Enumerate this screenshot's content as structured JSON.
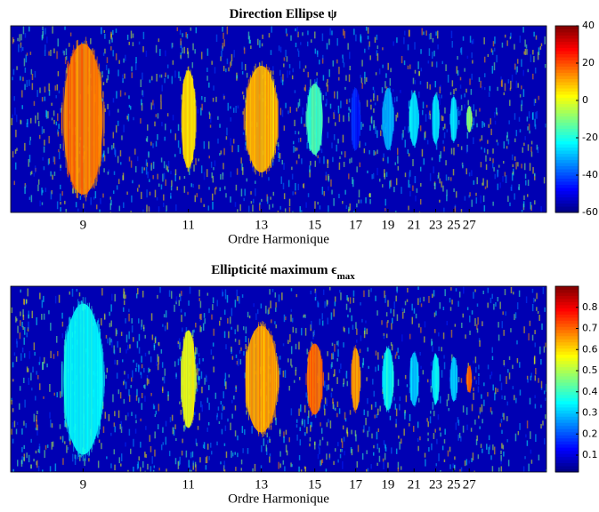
{
  "chart_data": [
    {
      "type": "heatmap",
      "title": "Direction Ellipse ψ",
      "x_label": "Ordre Harmonique",
      "x": [
        9,
        11,
        13,
        15,
        17,
        19,
        21,
        23,
        25,
        27
      ],
      "values": [
        15,
        5,
        10,
        -15,
        -45,
        -30,
        -25,
        -25,
        -25,
        -10
      ],
      "xlim": [
        8,
        45
      ],
      "xscale": "reciprocal",
      "xticks": [
        9,
        11,
        13,
        15,
        17,
        19,
        21,
        23,
        25,
        27
      ],
      "colormap": "jet",
      "clim": [
        -60,
        40
      ],
      "cticks": [
        -60,
        -40,
        -20,
        0,
        20,
        40
      ]
    },
    {
      "type": "heatmap",
      "title": "Ellipticité maximum ϵ",
      "title_sub": "max",
      "x_label": "Ordre Harmonique",
      "x": [
        9,
        11,
        13,
        15,
        17,
        19,
        21,
        23,
        25,
        27
      ],
      "values": [
        0.35,
        0.55,
        0.65,
        0.7,
        0.65,
        0.35,
        0.3,
        0.35,
        0.3,
        0.7
      ],
      "xlim": [
        8,
        45
      ],
      "xscale": "reciprocal",
      "xticks": [
        9,
        11,
        13,
        15,
        17,
        19,
        21,
        23,
        25,
        27
      ],
      "colormap": "jet",
      "clim": [
        0.02,
        0.9
      ],
      "cticks": [
        0.1,
        0.2,
        0.3,
        0.4,
        0.5,
        0.6,
        0.7,
        0.8
      ]
    }
  ]
}
